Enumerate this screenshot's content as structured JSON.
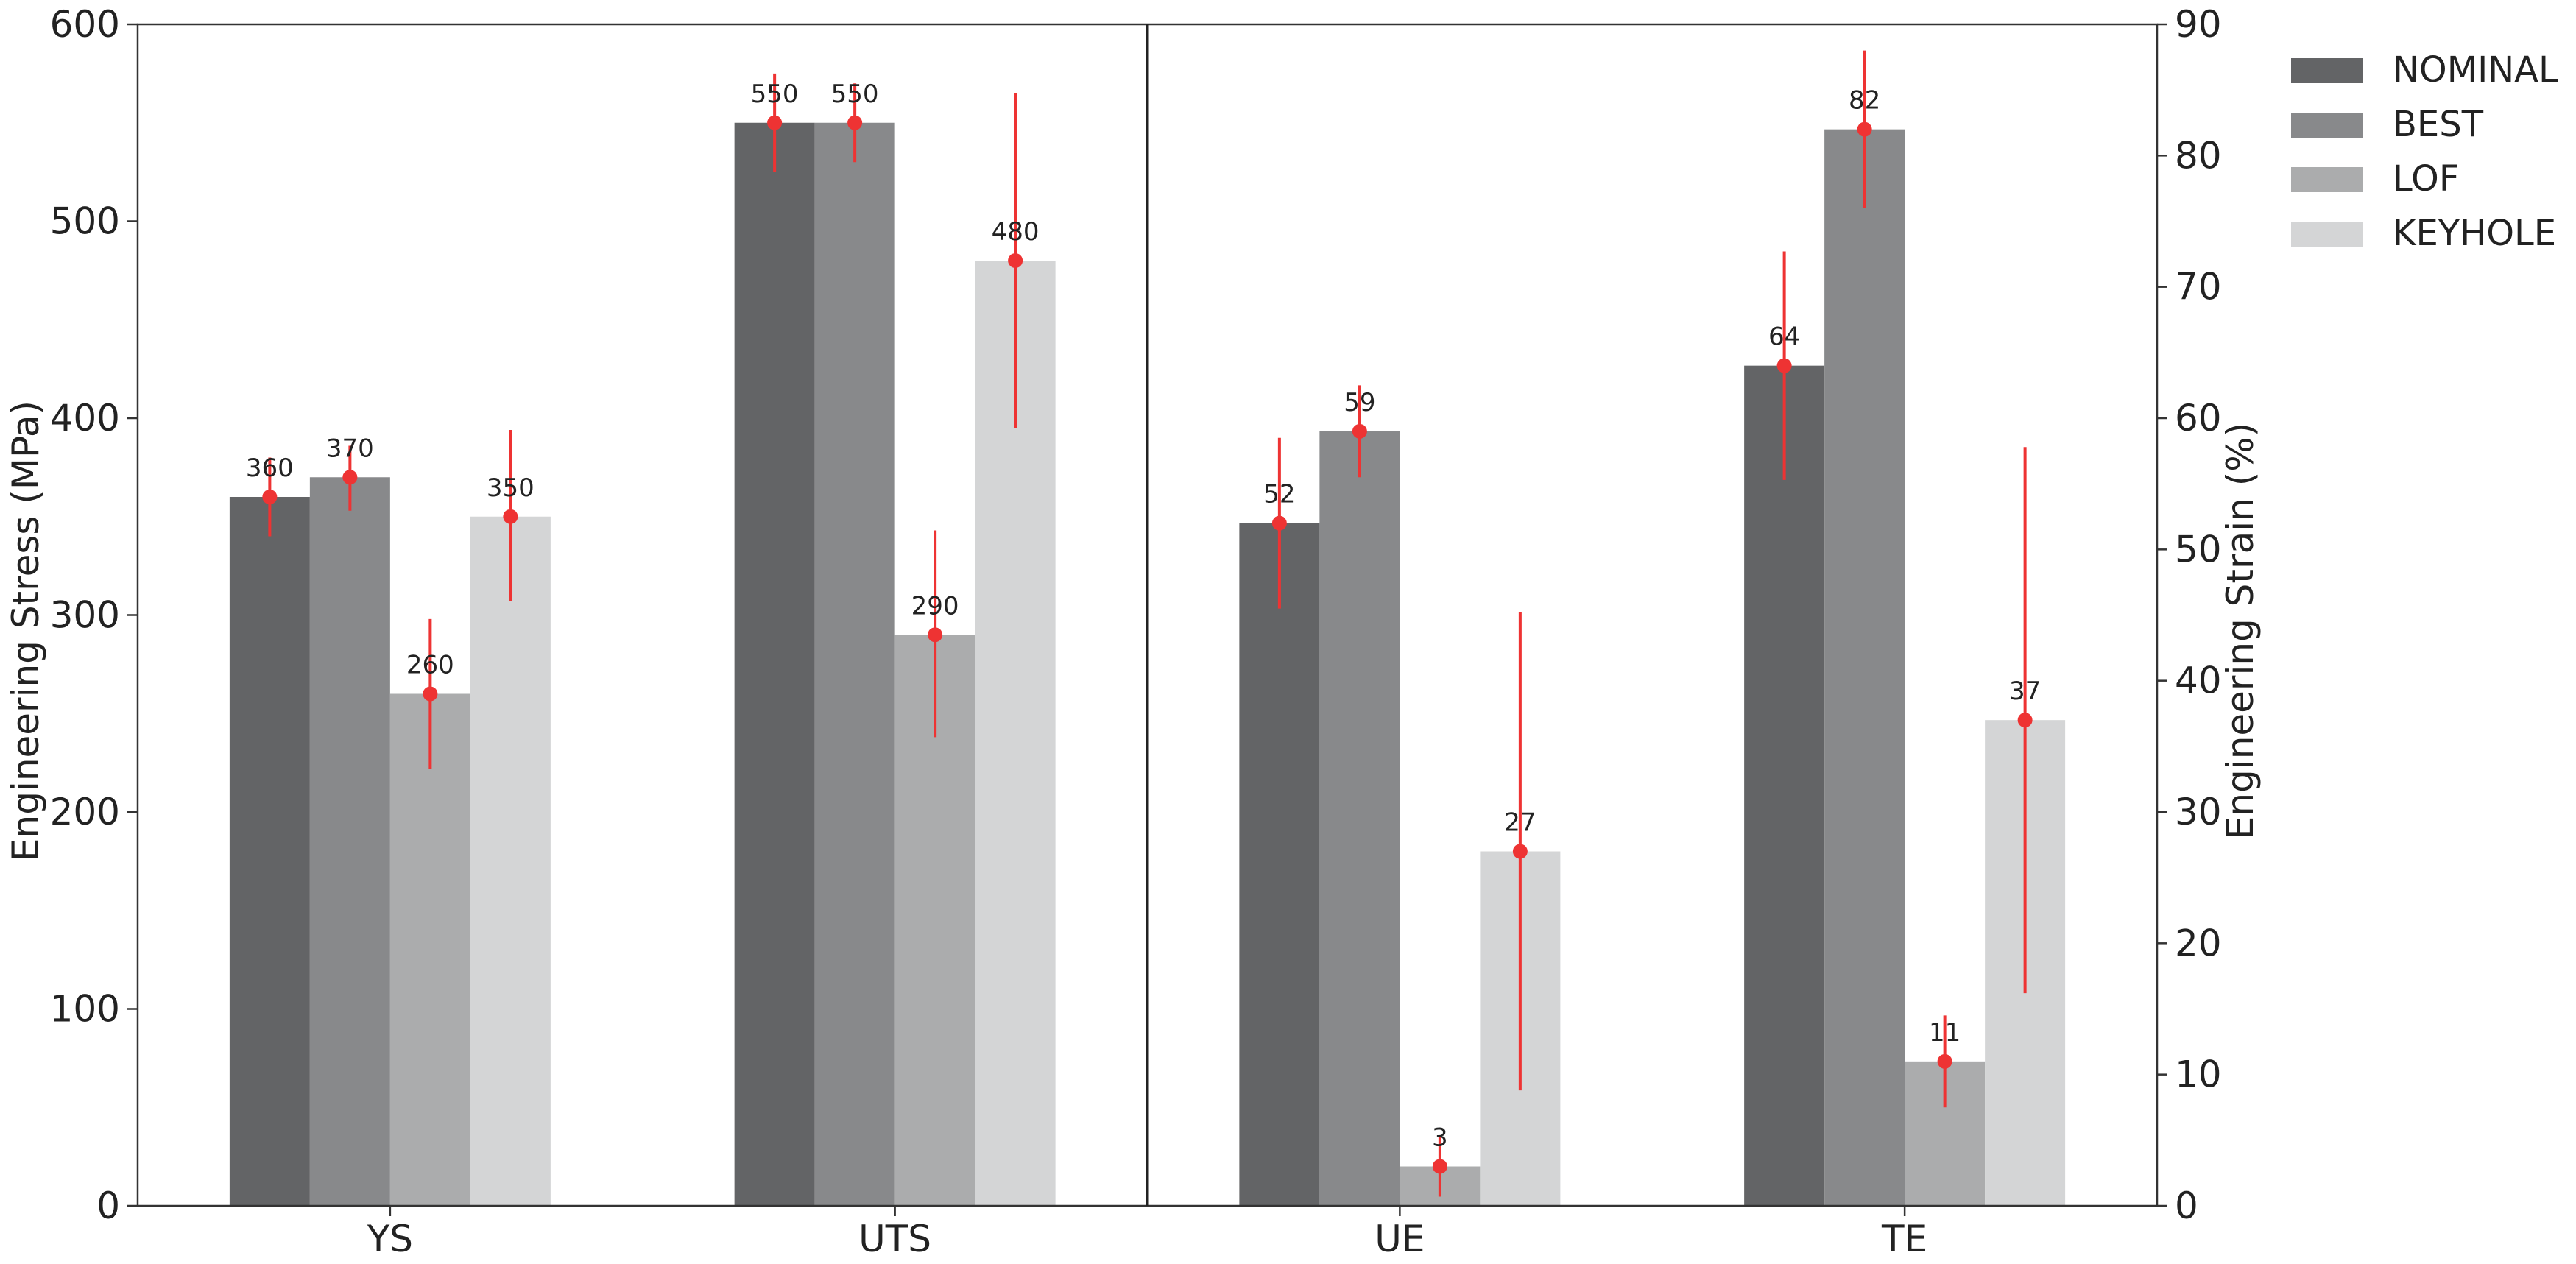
{
  "chart_data": {
    "type": "bar",
    "categories": [
      "YS",
      "UTS",
      "UE",
      "TE"
    ],
    "series": [
      {
        "name": "NOMINAL",
        "color": "#636466"
      },
      {
        "name": "BEST",
        "color": "#88898b"
      },
      {
        "name": "LOF",
        "color": "#abacad"
      },
      {
        "name": "KEYHOLE",
        "color": "#d4d5d6"
      }
    ],
    "bars": [
      {
        "category": "YS",
        "series": "NOMINAL",
        "axis": "left",
        "value": 360,
        "label": "360",
        "err_low": 340,
        "err_high": 380
      },
      {
        "category": "YS",
        "series": "BEST",
        "axis": "left",
        "value": 370,
        "label": "370",
        "err_low": 353,
        "err_high": 386
      },
      {
        "category": "YS",
        "series": "LOF",
        "axis": "left",
        "value": 260,
        "label": "260",
        "err_low": 222,
        "err_high": 298
      },
      {
        "category": "YS",
        "series": "KEYHOLE",
        "axis": "left",
        "value": 350,
        "label": "350",
        "err_low": 307,
        "err_high": 394
      },
      {
        "category": "UTS",
        "series": "NOMINAL",
        "axis": "left",
        "value": 550,
        "label": "550",
        "err_low": 525,
        "err_high": 575
      },
      {
        "category": "UTS",
        "series": "BEST",
        "axis": "left",
        "value": 550,
        "label": "550",
        "err_low": 530,
        "err_high": 570
      },
      {
        "category": "UTS",
        "series": "LOF",
        "axis": "left",
        "value": 290,
        "label": "290",
        "err_low": 238,
        "err_high": 343
      },
      {
        "category": "UTS",
        "series": "KEYHOLE",
        "axis": "left",
        "value": 480,
        "label": "480",
        "err_low": 395,
        "err_high": 565
      },
      {
        "category": "UE",
        "series": "NOMINAL",
        "axis": "right",
        "value": 52,
        "label": "52",
        "err_low": 45.5,
        "err_high": 58.5
      },
      {
        "category": "UE",
        "series": "BEST",
        "axis": "right",
        "value": 59,
        "label": "59",
        "err_low": 55.5,
        "err_high": 62.5
      },
      {
        "category": "UE",
        "series": "LOF",
        "axis": "right",
        "value": 3,
        "label": "3",
        "err_low": 0.7,
        "err_high": 5.3
      },
      {
        "category": "UE",
        "series": "KEYHOLE",
        "axis": "right",
        "value": 27,
        "label": "27",
        "err_low": 8.8,
        "err_high": 45.2
      },
      {
        "category": "TE",
        "series": "NOMINAL",
        "axis": "right",
        "value": 64,
        "label": "64",
        "err_low": 55.3,
        "err_high": 72.7
      },
      {
        "category": "TE",
        "series": "BEST",
        "axis": "right",
        "value": 82,
        "label": "82",
        "err_low": 76,
        "err_high": 88
      },
      {
        "category": "TE",
        "series": "LOF",
        "axis": "right",
        "value": 11,
        "label": "11",
        "err_low": 7.5,
        "err_high": 14.5
      },
      {
        "category": "TE",
        "series": "KEYHOLE",
        "axis": "right",
        "value": 37,
        "label": "37",
        "err_low": 16.2,
        "err_high": 57.8
      }
    ],
    "left_axis": {
      "label": "Engineering Stress (MPa)",
      "ylim": [
        0,
        600
      ],
      "ticks": [
        "0",
        "100",
        "200",
        "300",
        "400",
        "500",
        "600"
      ]
    },
    "right_axis": {
      "label": "Engineering Strain (%)",
      "ylim": [
        0,
        90
      ],
      "ticks": [
        "0",
        "10",
        "20",
        "30",
        "40",
        "50",
        "60",
        "70",
        "80",
        "90"
      ]
    },
    "error_bar_color": "#ee3333",
    "grid": false,
    "legend_position": "outside-top-right"
  }
}
